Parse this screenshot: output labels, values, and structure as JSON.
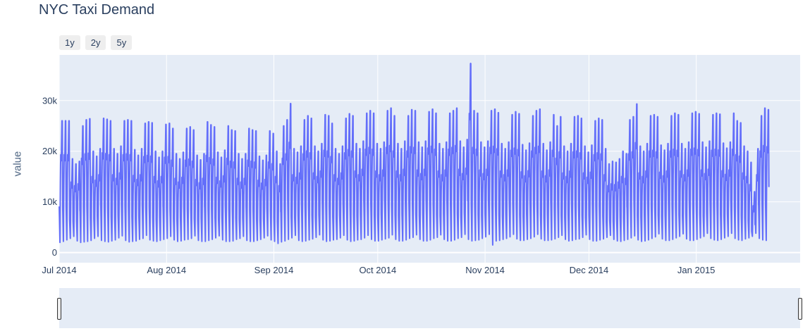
{
  "chart_data": {
    "type": "line",
    "title": "NYC Taxi Demand",
    "xlabel": "",
    "ylabel": "value",
    "x_range": [
      "2014-07-01",
      "2015-01-31"
    ],
    "ylim": [
      -2000,
      39000
    ],
    "yticks": [
      0,
      10000,
      20000,
      30000
    ],
    "ytick_labels": [
      "0",
      "10k",
      "20k",
      "30k"
    ],
    "xticks": [
      "2014-07-01",
      "2014-08-01",
      "2014-09-01",
      "2014-10-01",
      "2014-11-01",
      "2014-12-01",
      "2015-01-01"
    ],
    "xtick_labels": [
      "Jul 2014",
      "Aug 2014",
      "Sep 2014",
      "Oct 2014",
      "Nov 2014",
      "Dec 2014",
      "Jan 2015"
    ],
    "grid": true,
    "line_color": "#636efa",
    "series": [
      {
        "name": "",
        "sampling": "30min",
        "start": "2014-07-01",
        "daily_min": [
          2000,
          2200,
          2500,
          2800,
          3200,
          2300,
          2000,
          2100,
          2200,
          2400,
          2800,
          3200,
          2400,
          2200,
          2100,
          2300,
          2500,
          2900,
          3300,
          2400,
          2100,
          2200,
          2300,
          2600,
          2800,
          3400,
          2500,
          2300,
          2200,
          2400,
          2600,
          2800,
          3200,
          2500,
          2200,
          2300,
          2500,
          2600,
          2800,
          3300,
          2400,
          2200,
          2200,
          2400,
          2600,
          2900,
          3300,
          2500,
          2200,
          2200,
          2300,
          2600,
          2800,
          3200,
          2400,
          2200,
          2200,
          2400,
          2600,
          2900,
          3300,
          2500,
          2200,
          1800,
          2100,
          2300,
          2600,
          2900,
          3400,
          2400,
          2200,
          2300,
          2500,
          2700,
          3000,
          3500,
          2500,
          2200,
          2300,
          2500,
          2600,
          2900,
          3400,
          2500,
          2200,
          2300,
          2500,
          2600,
          2900,
          3400,
          2600,
          2300,
          2300,
          2500,
          2700,
          2900,
          3500,
          2600,
          2300,
          2300,
          2500,
          2800,
          3000,
          3500,
          2600,
          2300,
          2300,
          2500,
          2800,
          3000,
          3500,
          2600,
          2300,
          2300,
          2500,
          2800,
          3000,
          3600,
          2600,
          2300,
          2400,
          2500,
          2800,
          3100,
          3600,
          1500,
          2300,
          2400,
          2600,
          2800,
          3100,
          3600,
          2700,
          2400,
          2400,
          2600,
          2800,
          3100,
          3600,
          2700,
          2400,
          2400,
          2500,
          2700,
          3000,
          3400,
          2600,
          2300,
          2400,
          2600,
          2700,
          3000,
          3500,
          2600,
          2300,
          2300,
          2500,
          2700,
          3000,
          3400,
          2600,
          2300,
          2200,
          2400,
          2600,
          2900,
          3300,
          2500,
          2200,
          2300,
          2500,
          2800,
          3100,
          3700,
          2700,
          2400,
          2400,
          2600,
          2900,
          3200,
          3700,
          2700,
          2400,
          2400,
          2600,
          2900,
          3200,
          3800,
          2800,
          2500,
          2400,
          2600,
          2900,
          3200,
          3800,
          2800,
          2500,
          2400,
          2700,
          2900,
          3200,
          3800,
          2800,
          2500,
          2400,
          2600,
          2900,
          3200,
          3800,
          2800,
          2500,
          2400,
          2600,
          2900,
          3200,
          3800,
          2800
        ],
        "daily_max": [
          26000,
          26000,
          26000,
          18500,
          17500,
          18000,
          25000,
          26200,
          26400,
          20000,
          19000,
          20500,
          26500,
          26300,
          26000,
          20500,
          19500,
          21000,
          26000,
          26200,
          26000,
          20300,
          19200,
          20500,
          25500,
          25800,
          25600,
          20000,
          18800,
          20000,
          25300,
          25500,
          24500,
          19500,
          18500,
          19800,
          24500,
          24800,
          24200,
          19200,
          18300,
          19500,
          25800,
          25200,
          24800,
          19800,
          18800,
          20200,
          25000,
          24200,
          24000,
          19500,
          18500,
          19500,
          24500,
          24200,
          24000,
          19000,
          18200,
          19200,
          24000,
          23500,
          20000,
          17500,
          25000,
          26200,
          29400,
          20500,
          19800,
          21000,
          26200,
          27000,
          26500,
          21000,
          20000,
          21500,
          27200,
          27000,
          25500,
          20500,
          19500,
          21000,
          26500,
          27400,
          27000,
          21500,
          20500,
          22000,
          27500,
          28000,
          27500,
          21500,
          20500,
          21800,
          28000,
          28500,
          27000,
          21500,
          20500,
          22000,
          27000,
          28200,
          28000,
          21800,
          20800,
          22000,
          27800,
          28300,
          27500,
          21500,
          20500,
          21800,
          27500,
          28000,
          28500,
          22000,
          20800,
          22300,
          37300,
          28000,
          27500,
          21800,
          20800,
          22000,
          28000,
          28300,
          27600,
          21500,
          20500,
          21800,
          27200,
          27800,
          27400,
          21300,
          20200,
          21600,
          27000,
          28000,
          28300,
          21500,
          20200,
          21800,
          27200,
          25000,
          26800,
          21000,
          20000,
          21500,
          26800,
          27000,
          26500,
          21000,
          19800,
          21200,
          26000,
          26500,
          26200,
          20500,
          17500,
          18000,
          17800,
          18500,
          20000,
          19500,
          26200,
          26800,
          29300,
          21000,
          20000,
          21500,
          27000,
          27200,
          26800,
          21200,
          20200,
          21500,
          27000,
          27500,
          27200,
          21500,
          20500,
          21800,
          27500,
          27800,
          27400,
          21800,
          20800,
          22000,
          27200,
          27500,
          27300,
          21600,
          20600,
          21800,
          27500,
          26000,
          25600,
          21000,
          20000,
          17800,
          12000,
          20500,
          27000,
          28500,
          28200
        ]
      }
    ]
  },
  "range_buttons": [
    {
      "label": "1y"
    },
    {
      "label": "2y"
    },
    {
      "label": "5y"
    }
  ],
  "rangeslider": {
    "start": "2014-07-01",
    "end": "2015-01-31"
  }
}
